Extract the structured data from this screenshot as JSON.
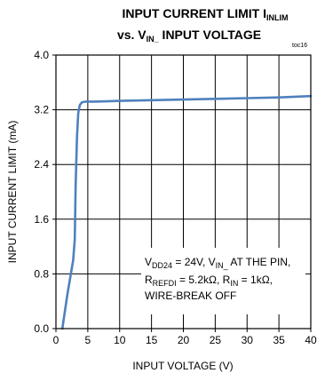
{
  "chart_data": {
    "type": "line",
    "title": {
      "line1_main": "INPUT CURRENT LIMIT I",
      "line1_sub": "INLIM",
      "line2_pre": "vs. V",
      "line2_sub": "IN_",
      "line2_post": " INPUT VOLTAGE"
    },
    "note": "toc16",
    "xlabel": "INPUT VOLTAGE (V)",
    "ylabel": "INPUT CURRENT LIMIT (mA)",
    "xlim": [
      0,
      40
    ],
    "ylim": [
      0,
      4.0
    ],
    "xticks": [
      0,
      5,
      10,
      15,
      20,
      25,
      30,
      35,
      40
    ],
    "xtick_labels": [
      "0",
      "5",
      "10",
      "15",
      "20",
      "25",
      "30",
      "35",
      "40"
    ],
    "yticks": [
      0,
      0.8,
      1.6,
      2.4,
      3.2,
      4.0
    ],
    "ytick_labels": [
      "0.0",
      "0.8",
      "1.6",
      "2.4",
      "3.2",
      "4.0"
    ],
    "grid": true,
    "series": [
      {
        "color": "#4f81bd",
        "x": [
          1.0,
          1.8,
          2.7,
          2.95,
          3.1,
          3.3,
          3.5,
          3.75,
          4.1,
          4.7,
          6,
          10,
          15,
          20,
          25,
          30,
          35,
          40
        ],
        "y": [
          0.0,
          0.5,
          1.0,
          1.3,
          2.1,
          2.8,
          3.15,
          3.27,
          3.31,
          3.32,
          3.32,
          3.33,
          3.34,
          3.35,
          3.36,
          3.37,
          3.38,
          3.4
        ]
      }
    ],
    "annotation": {
      "line1": [
        {
          "text": "V",
          "sub": false
        },
        {
          "text": "DD24",
          "sub": true
        },
        {
          "text": " = 24V, V",
          "sub": false
        },
        {
          "text": "IN_",
          "sub": true
        },
        {
          "text": " AT THE PIN,",
          "sub": false
        }
      ],
      "line2": [
        {
          "text": "R",
          "sub": false
        },
        {
          "text": "REFDI",
          "sub": true
        },
        {
          "text": " = 5.2kΩ, R",
          "sub": false
        },
        {
          "text": "IN",
          "sub": true
        },
        {
          "text": " = 1kΩ,",
          "sub": false
        }
      ],
      "line3": [
        {
          "text": "WIRE-BREAK OFF",
          "sub": false
        }
      ]
    }
  }
}
